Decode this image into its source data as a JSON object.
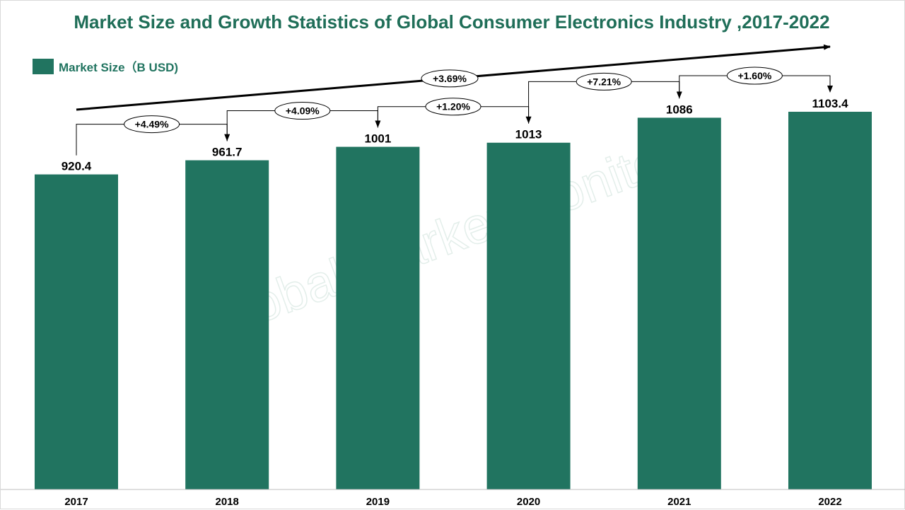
{
  "colors": {
    "bar": "#217460",
    "title": "#1f6e58",
    "legend_text": "#217460",
    "watermark": "#e3eeea"
  },
  "watermark_text": "Global Market Monitor",
  "chart_data": {
    "type": "bar",
    "title": "Market Size and Growth Statistics of Global Consumer Electronics Industry ,2017-2022",
    "xlabel": "",
    "ylabel": "",
    "categories": [
      "2017",
      "2018",
      "2019",
      "2020",
      "2021",
      "2022"
    ],
    "series": [
      {
        "name": "Market Size（B USD)",
        "values": [
          920.4,
          961.7,
          1001,
          1013,
          1086,
          1103.4
        ],
        "labels": [
          "920.4",
          "961.7",
          "1001",
          "1013",
          "1086",
          "1103.4"
        ]
      }
    ],
    "growth_rates": [
      "+4.49%",
      "+4.09%",
      "+1.20%",
      "+7.21%",
      "+1.60%"
    ],
    "cagr_label": "+3.69%",
    "ylim": [
      0,
      1103.4
    ],
    "grid": false,
    "legend_position": "top-left"
  }
}
